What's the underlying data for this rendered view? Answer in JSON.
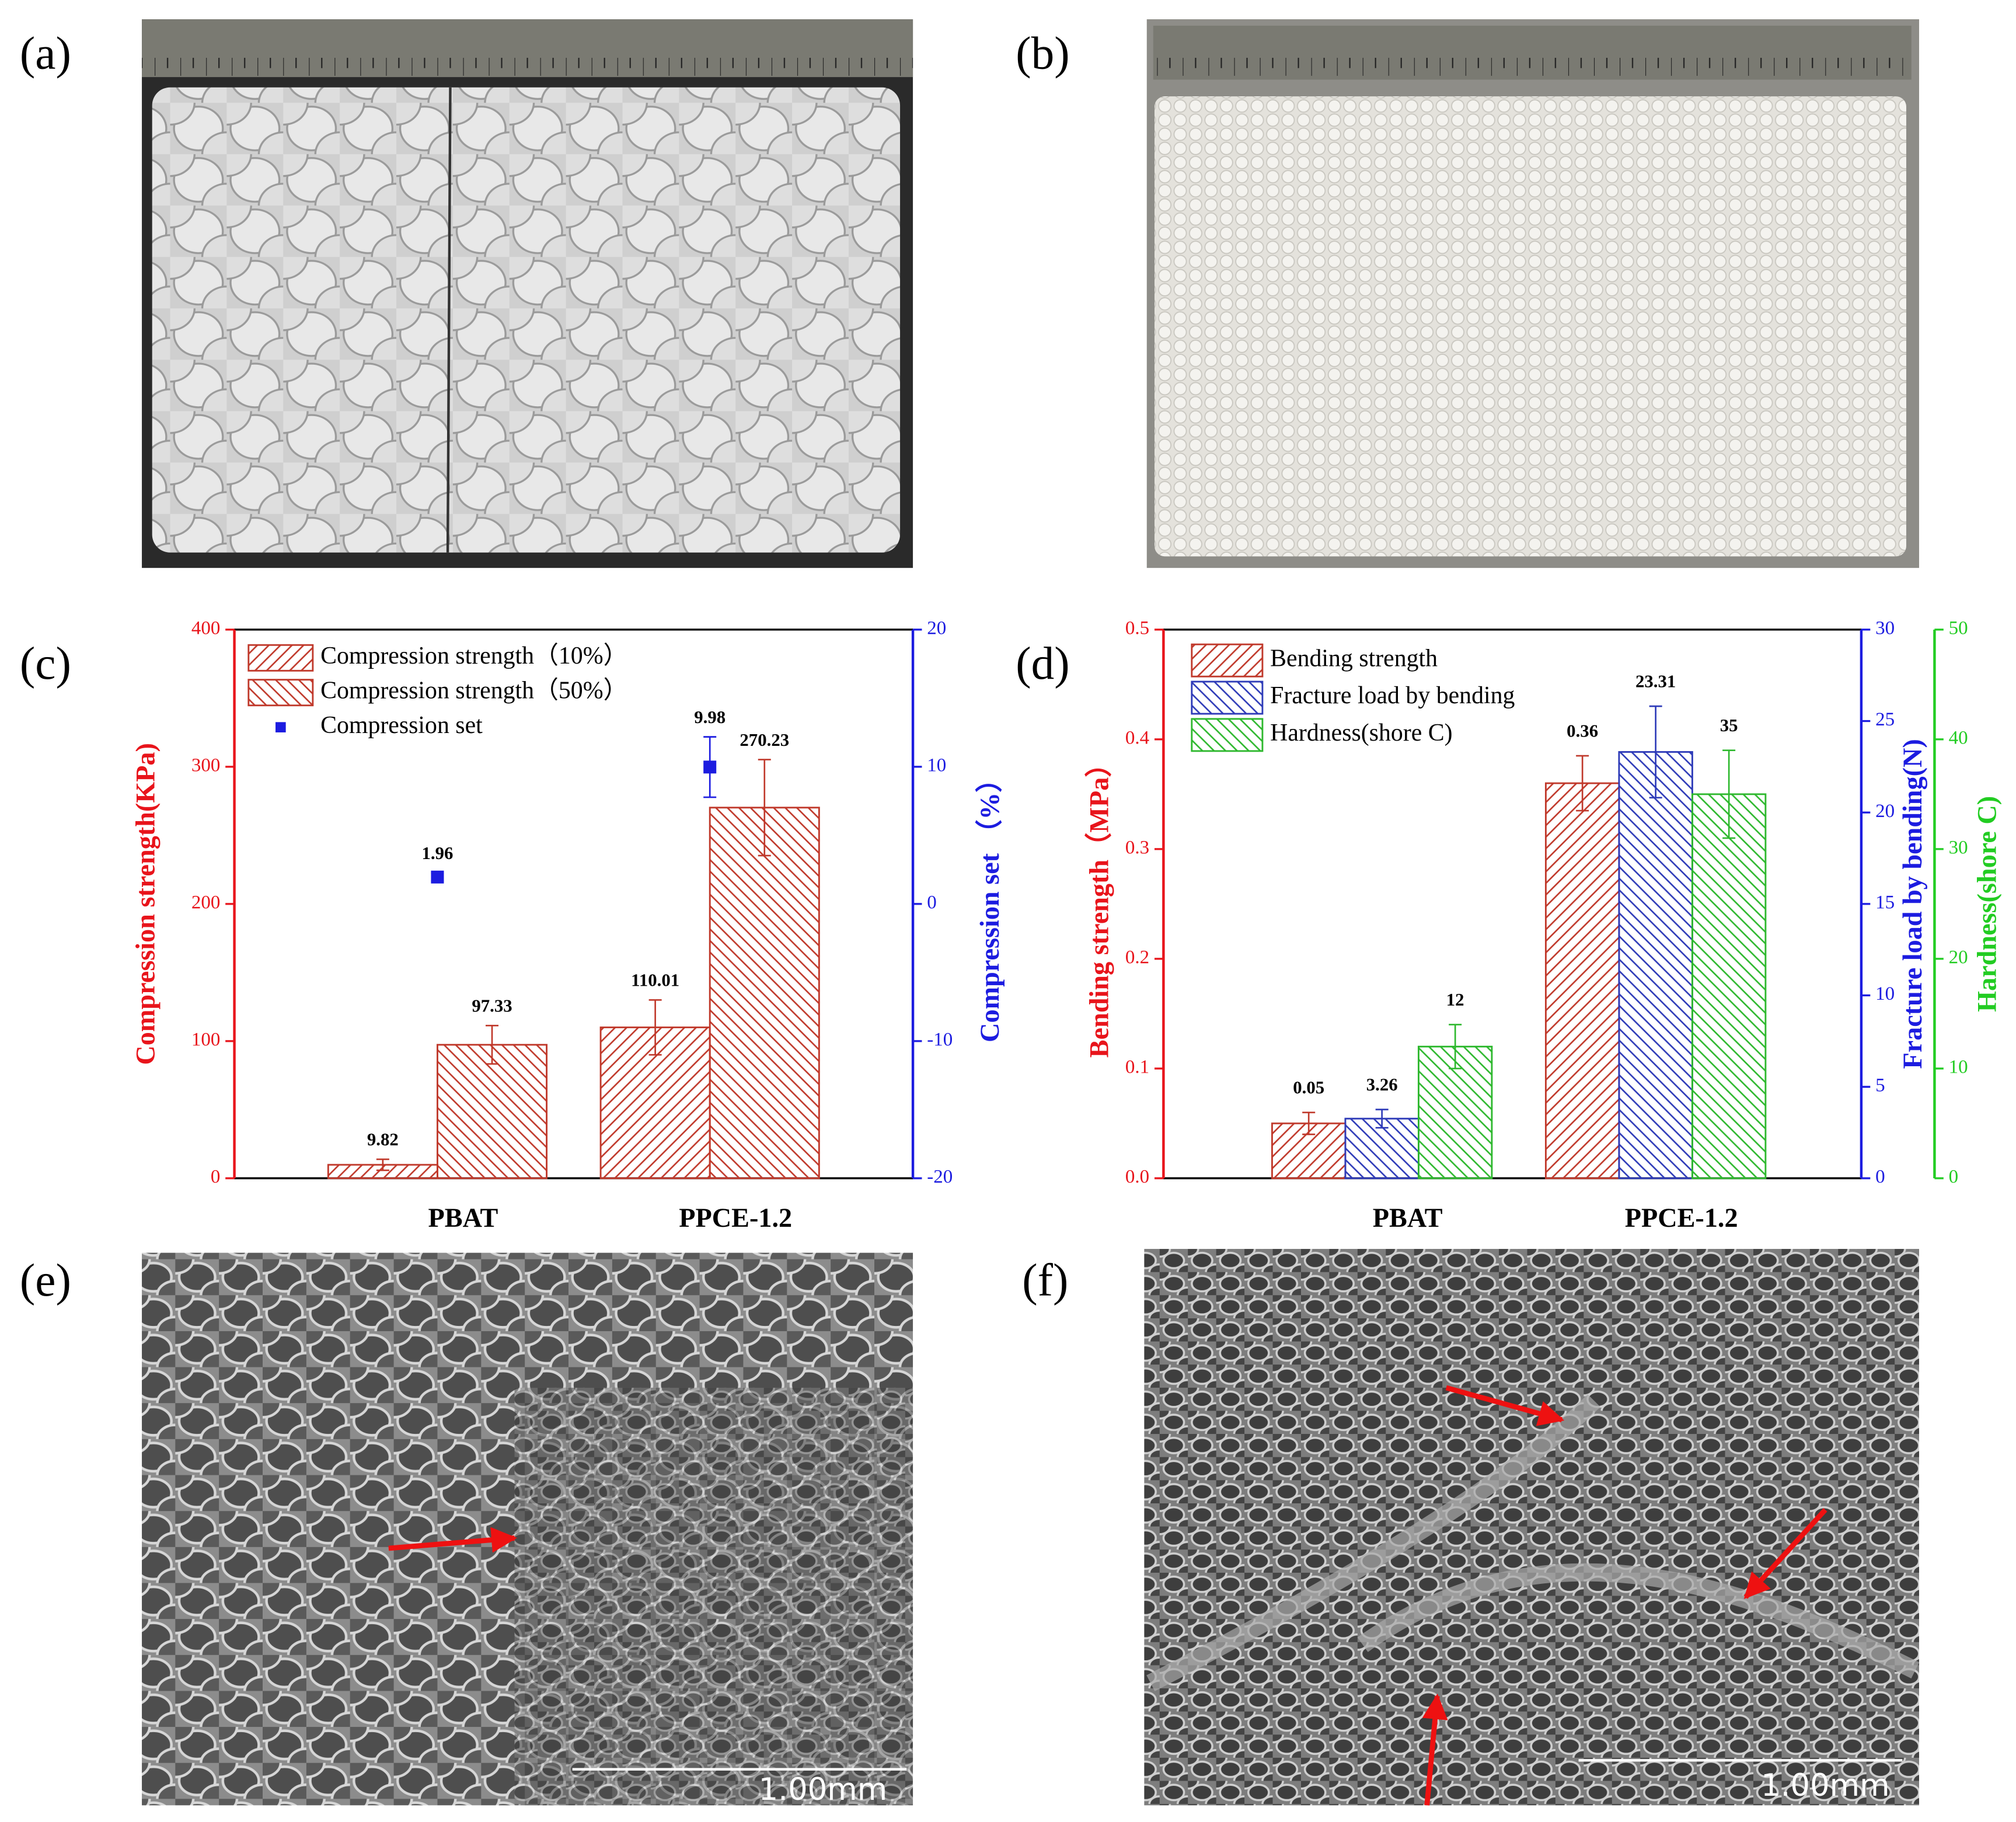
{
  "panel_labels": [
    "(a)",
    "(b)",
    "(c)",
    "(d)",
    "(e)",
    "(f)"
  ],
  "scale_bars": [
    "1.00mm",
    "1.00mm"
  ],
  "chart_data": [
    {
      "type": "bar",
      "categories": [
        "PBAT",
        "PPCE-1.2"
      ],
      "ylabel": "Compression strength(KPa)",
      "ycolor": "#e8141b",
      "y2label": "Compression set （%）",
      "y2color": "#1c1ce0",
      "ylim": [
        0,
        400
      ],
      "yticks": [
        0,
        100,
        200,
        300,
        400
      ],
      "y2lim": [
        -20,
        20
      ],
      "y2ticks": [
        -20,
        -10,
        0,
        10,
        20
      ],
      "series": [
        {
          "name": "Compression strength（10%）",
          "color": "#c0392b",
          "hatch": "/",
          "values": [
            9.82,
            110.01
          ],
          "errors": [
            4,
            20
          ]
        },
        {
          "name": "Compression strength（50%）",
          "color": "#c0392b",
          "hatch": "\\",
          "values": [
            97.33,
            270.23
          ],
          "errors": [
            14,
            35
          ]
        },
        {
          "name": "Compression set",
          "type": "scatter",
          "axis": "y2",
          "color": "#1c1ce0",
          "values": [
            1.96,
            9.98
          ],
          "errors": [
            0.3,
            2.2
          ]
        }
      ]
    },
    {
      "type": "bar",
      "categories": [
        "PBAT",
        "PPCE-1.2"
      ],
      "ylabel": "Bending strength（MPa）",
      "ycolor": "#e8141b",
      "y2label": "Fracture load by bending(N)",
      "y2color": "#1c1ce0",
      "y3label": "Hardness(shore C)",
      "y3color": "#22cc22",
      "ylim": [
        0,
        0.5
      ],
      "yticks": [
        {
          "value": 0,
          "label": "0.0"
        },
        0.1,
        0.2,
        0.3,
        0.4,
        0.5
      ],
      "y2lim": [
        0,
        30
      ],
      "y2ticks": [
        0,
        5,
        10,
        15,
        20,
        25,
        30
      ],
      "y3lim": [
        0,
        50
      ],
      "y3ticks": [
        0,
        10,
        20,
        30,
        40,
        50
      ],
      "series": [
        {
          "name": "Bending strength",
          "color": "#c0392b",
          "hatch": "/",
          "values": [
            0.05,
            0.36
          ],
          "errors": [
            0.01,
            0.025
          ]
        },
        {
          "name": "Fracture load by bending",
          "axis": "y2",
          "color": "#2e3bb8",
          "hatch": "\\",
          "values": [
            3.26,
            23.31
          ],
          "errors": [
            0.5,
            2.5
          ]
        },
        {
          "name": "Hardness(shore C)",
          "axis": "y3",
          "color": "#2eb82e",
          "hatch": "\\",
          "values": [
            12,
            35
          ],
          "errors": [
            2,
            4
          ]
        }
      ]
    }
  ]
}
